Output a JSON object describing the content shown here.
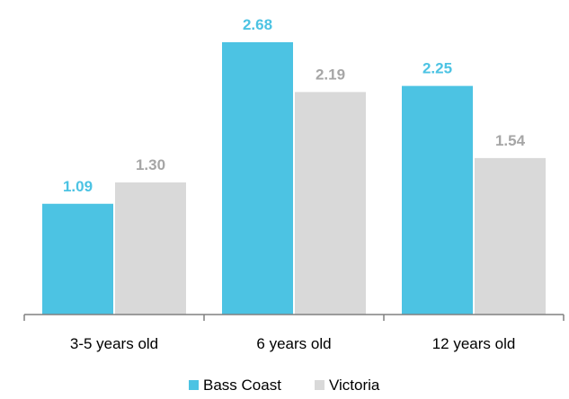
{
  "chart_data": {
    "type": "bar",
    "categories": [
      "3-5 years old",
      "6 years old",
      "12 years old"
    ],
    "series": [
      {
        "name": "Bass Coast",
        "values": [
          1.09,
          2.68,
          2.25
        ],
        "color": "#4cc3e3"
      },
      {
        "name": "Victoria",
        "values": [
          1.3,
          2.19,
          1.54
        ],
        "color": "#d9d9d9"
      }
    ],
    "value_labels": [
      [
        "1.09",
        "2.68",
        "2.25"
      ],
      [
        "1.30",
        "2.19",
        "1.54"
      ]
    ],
    "label_colors": [
      "#4cc3e3",
      "#a6a6a6"
    ],
    "ylim": [
      0,
      3.0
    ],
    "grid": false,
    "legend_position": "bottom",
    "title": "",
    "xlabel": "",
    "ylabel": ""
  }
}
